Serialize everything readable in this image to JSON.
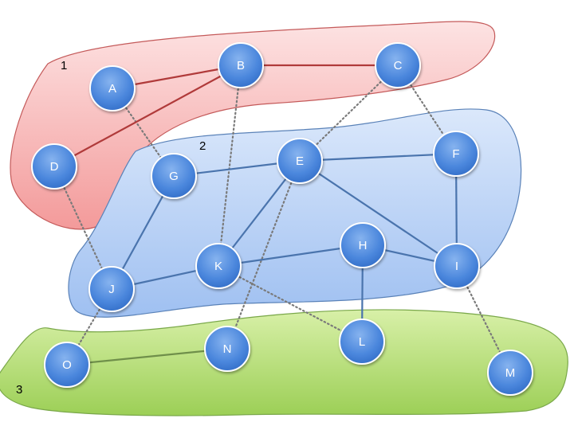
{
  "regions": [
    {
      "id": "1",
      "label": "1",
      "color": "#f4a3a3"
    },
    {
      "id": "2",
      "label": "2",
      "color": "#a9c8f3"
    },
    {
      "id": "3",
      "label": "3",
      "color": "#b8e07a"
    }
  ],
  "nodes": [
    {
      "id": "A",
      "label": "A",
      "region": "1"
    },
    {
      "id": "B",
      "label": "B",
      "region": "1"
    },
    {
      "id": "C",
      "label": "C",
      "region": "1"
    },
    {
      "id": "D",
      "label": "D",
      "region": "1"
    },
    {
      "id": "E",
      "label": "E",
      "region": "2"
    },
    {
      "id": "F",
      "label": "F",
      "region": "2"
    },
    {
      "id": "G",
      "label": "G",
      "region": "2"
    },
    {
      "id": "H",
      "label": "H",
      "region": "2"
    },
    {
      "id": "I",
      "label": "I",
      "region": "2"
    },
    {
      "id": "J",
      "label": "J",
      "region": "2"
    },
    {
      "id": "K",
      "label": "K",
      "region": "2"
    },
    {
      "id": "L",
      "label": "L",
      "region": "3"
    },
    {
      "id": "M",
      "label": "M",
      "region": "3"
    },
    {
      "id": "N",
      "label": "N",
      "region": "3"
    },
    {
      "id": "O",
      "label": "O",
      "region": "3"
    }
  ],
  "edges_solid": [
    {
      "from": "A",
      "to": "B",
      "color": "#b03a3a"
    },
    {
      "from": "B",
      "to": "C",
      "color": "#b03a3a"
    },
    {
      "from": "B",
      "to": "D",
      "color": "#b03a3a"
    },
    {
      "from": "G",
      "to": "E",
      "color": "#4a74ad"
    },
    {
      "from": "E",
      "to": "F",
      "color": "#4a74ad"
    },
    {
      "from": "E",
      "to": "K",
      "color": "#4a74ad"
    },
    {
      "from": "E",
      "to": "I",
      "color": "#4a74ad"
    },
    {
      "from": "F",
      "to": "I",
      "color": "#4a74ad"
    },
    {
      "from": "G",
      "to": "J",
      "color": "#4a74ad"
    },
    {
      "from": "J",
      "to": "K",
      "color": "#4a74ad"
    },
    {
      "from": "K",
      "to": "H",
      "color": "#4a74ad"
    },
    {
      "from": "H",
      "to": "I",
      "color": "#4a74ad"
    },
    {
      "from": "H",
      "to": "L",
      "color": "#4a74ad"
    },
    {
      "from": "O",
      "to": "N",
      "color": "#6f8f4a"
    }
  ],
  "edges_dotted": [
    {
      "from": "A",
      "to": "G"
    },
    {
      "from": "B",
      "to": "K"
    },
    {
      "from": "C",
      "to": "E"
    },
    {
      "from": "C",
      "to": "F"
    },
    {
      "from": "D",
      "to": "J"
    },
    {
      "from": "E",
      "to": "N"
    },
    {
      "from": "K",
      "to": "L"
    },
    {
      "from": "J",
      "to": "O"
    },
    {
      "from": "I",
      "to": "M"
    }
  ]
}
